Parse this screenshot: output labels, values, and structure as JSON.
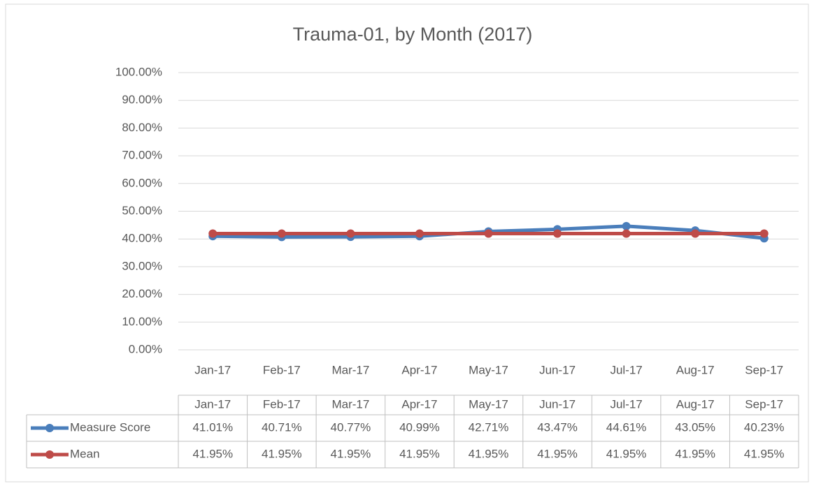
{
  "chart_data": {
    "type": "line",
    "title": "Trauma-01, by Month (2017)",
    "categories": [
      "Jan-17",
      "Feb-17",
      "Mar-17",
      "Apr-17",
      "May-17",
      "Jun-17",
      "Jul-17",
      "Aug-17",
      "Sep-17"
    ],
    "series": [
      {
        "name": "Measure Score",
        "color": "#4a7ebb",
        "values": [
          41.01,
          40.71,
          40.77,
          40.99,
          42.71,
          43.47,
          44.61,
          43.05,
          40.23
        ],
        "value_labels": [
          "41.01%",
          "40.71%",
          "40.77%",
          "40.99%",
          "42.71%",
          "43.47%",
          "44.61%",
          "43.05%",
          "40.23%"
        ]
      },
      {
        "name": "Mean",
        "color": "#be4b48",
        "values": [
          41.95,
          41.95,
          41.95,
          41.95,
          41.95,
          41.95,
          41.95,
          41.95,
          41.95
        ],
        "value_labels": [
          "41.95%",
          "41.95%",
          "41.95%",
          "41.95%",
          "41.95%",
          "41.95%",
          "41.95%",
          "41.95%",
          "41.95%"
        ]
      }
    ],
    "ylim": [
      0,
      100
    ],
    "yticks": [
      {
        "value": 0,
        "label": "0.00%"
      },
      {
        "value": 10,
        "label": "10.00%"
      },
      {
        "value": 20,
        "label": "20.00%"
      },
      {
        "value": 30,
        "label": "30.00%"
      },
      {
        "value": 40,
        "label": "40.00%"
      },
      {
        "value": 50,
        "label": "50.00%"
      },
      {
        "value": 60,
        "label": "60.00%"
      },
      {
        "value": 70,
        "label": "70.00%"
      },
      {
        "value": 80,
        "label": "80.00%"
      },
      {
        "value": 90,
        "label": "90.00%"
      },
      {
        "value": 100,
        "label": "100.00%"
      }
    ],
    "grid": true
  }
}
